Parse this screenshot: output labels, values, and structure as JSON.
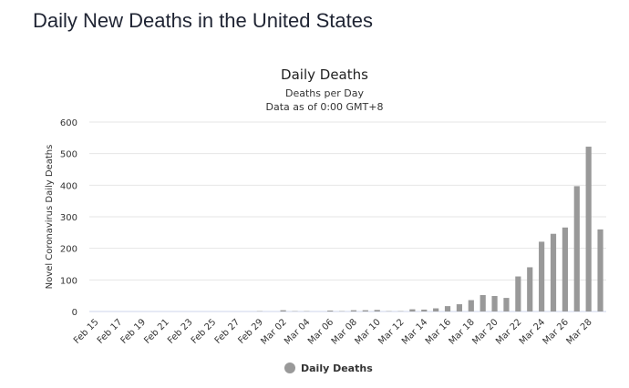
{
  "page": {
    "title": "Daily New Deaths in the United States"
  },
  "colors": {
    "bar": "#999999",
    "grid": "#e6e6e6",
    "axis": "#ccd6eb"
  },
  "chart_data": {
    "type": "bar",
    "title": "Daily Deaths",
    "subtitle_lines": [
      "Deaths per Day",
      "Data as of 0:00 GMT+8"
    ],
    "xlabel": "",
    "ylabel": "Novel Coronavirus Daily Deaths",
    "ylim": [
      0,
      600
    ],
    "yticks": [
      0,
      100,
      200,
      300,
      400,
      500,
      600
    ],
    "legend": {
      "position": "bottom-center",
      "entries": [
        "Daily Deaths"
      ]
    },
    "categories": [
      "Feb 15",
      "Feb 16",
      "Feb 17",
      "Feb 18",
      "Feb 19",
      "Feb 20",
      "Feb 21",
      "Feb 22",
      "Feb 23",
      "Feb 24",
      "Feb 25",
      "Feb 26",
      "Feb 27",
      "Feb 28",
      "Feb 29",
      "Mar 01",
      "Mar 02",
      "Mar 03",
      "Mar 04",
      "Mar 05",
      "Mar 06",
      "Mar 07",
      "Mar 08",
      "Mar 09",
      "Mar 10",
      "Mar 11",
      "Mar 12",
      "Mar 13",
      "Mar 14",
      "Mar 15",
      "Mar 16",
      "Mar 17",
      "Mar 18",
      "Mar 19",
      "Mar 20",
      "Mar 21",
      "Mar 22",
      "Mar 23",
      "Mar 24",
      "Mar 25",
      "Mar 26",
      "Mar 27",
      "Mar 28",
      "Mar 29"
    ],
    "tick_labels": [
      "Feb 15",
      "Feb 17",
      "Feb 19",
      "Feb 21",
      "Feb 23",
      "Feb 25",
      "Feb 27",
      "Feb 29",
      "Mar 02",
      "Mar 04",
      "Mar 06",
      "Mar 08",
      "Mar 10",
      "Mar 12",
      "Mar 14",
      "Mar 16",
      "Mar 18",
      "Mar 20",
      "Mar 22",
      "Mar 24",
      "Mar 26",
      "Mar 28"
    ],
    "series": [
      {
        "name": "Daily Deaths",
        "values": [
          0,
          0,
          0,
          0,
          0,
          0,
          0,
          0,
          0,
          0,
          0,
          0,
          0,
          0,
          1,
          0,
          4,
          1,
          1,
          0,
          3,
          1,
          4,
          4,
          5,
          1,
          1,
          7,
          6,
          10,
          17,
          23,
          36,
          52,
          49,
          43,
          111,
          140,
          221,
          246,
          266,
          397,
          522,
          260
        ]
      }
    ]
  }
}
